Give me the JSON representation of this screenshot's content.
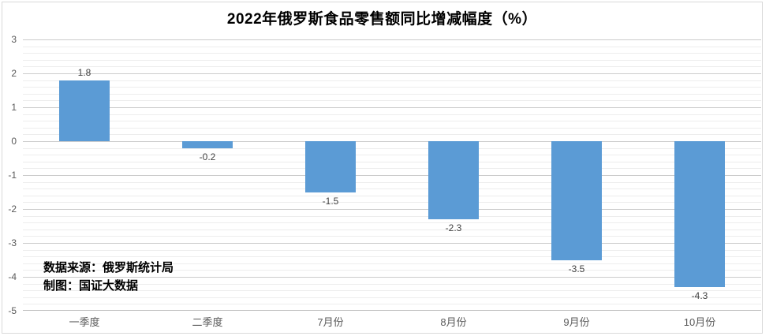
{
  "chart_data": {
    "type": "bar",
    "title": "2022年俄罗斯食品零售额同比增减幅度（%）",
    "categories": [
      "一季度",
      "二季度",
      "7月份",
      "8月份",
      "9月份",
      "10月份"
    ],
    "values": [
      1.8,
      -0.2,
      -1.5,
      -2.3,
      -3.5,
      -4.3
    ],
    "value_labels": [
      "1.8",
      "-0.2",
      "-1.5",
      "-2.3",
      "-3.5",
      "-4.3"
    ],
    "xlabel": "",
    "ylabel": "",
    "ylim": [
      -5,
      3
    ],
    "y_major_unit": 1,
    "y_minor_unit": 0.2,
    "y_tick_labels": [
      "3",
      "2",
      "1",
      "0",
      "-1",
      "-2",
      "-3",
      "-4",
      "-5"
    ],
    "grid": "major+minor horizontal gridlines",
    "legend_position": "none",
    "annotations": [
      "数据来源：俄罗斯统计局",
      "制图：国证大数据"
    ]
  },
  "annotation": {
    "source_line1": "数据来源：俄罗斯统计局",
    "source_line2": "制图：国证大数据"
  },
  "colors": {
    "bar": "#5b9bd5",
    "major_grid": "#cccccc",
    "minor_grid": "#ededed",
    "axis_line": "#bfbfbf",
    "tick_label": "#595959",
    "data_label": "#404040",
    "frame_border": "#d9d9d9",
    "title_text": "#000000"
  }
}
